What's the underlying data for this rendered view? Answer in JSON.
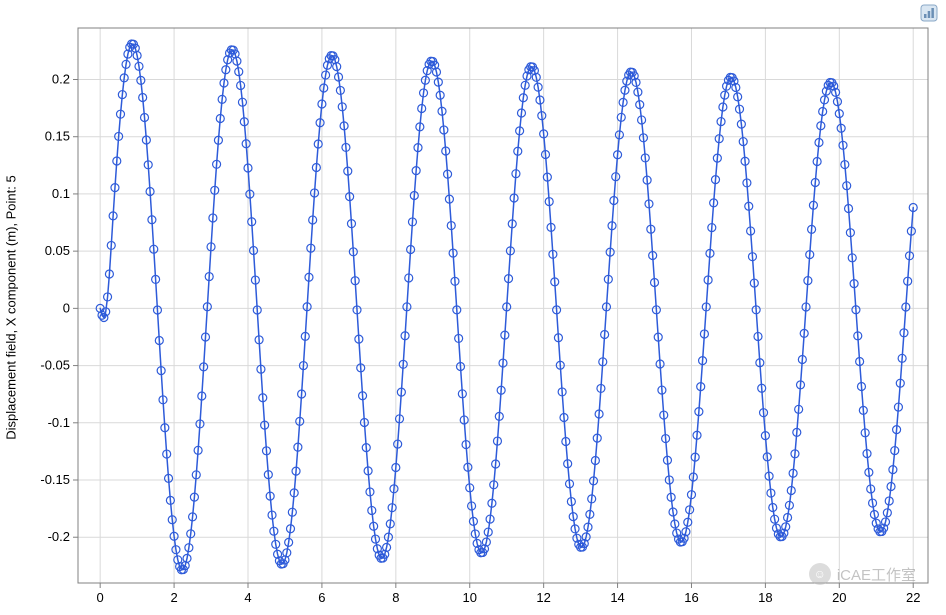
{
  "toolbar": {
    "icon_name": "plot-settings-icon",
    "icon_bg": "#d9e6f2",
    "icon_border": "#8aa8c7"
  },
  "watermark": {
    "text": "iCAE工作室",
    "icon_glyph": "☺"
  },
  "chart": {
    "type": "line+markers",
    "ylabel": "Displacement field, X component (m), Point: 5",
    "background_color": "#ffffff",
    "plot_border_color": "#808080",
    "grid_color": "#d9d9d9",
    "tick_font_size": 13,
    "tick_color": "#000000",
    "label_font_size": 13,
    "xlim": [
      -0.6,
      22.4
    ],
    "ylim": [
      -0.24,
      0.245
    ],
    "xticks": [
      0,
      2,
      4,
      6,
      8,
      10,
      12,
      14,
      16,
      18,
      20,
      22
    ],
    "yticks": [
      -0.2,
      -0.15,
      -0.1,
      -0.05,
      0,
      0.05,
      0.1,
      0.15,
      0.2
    ],
    "series": {
      "line_color": "#2e5bd9",
      "line_width": 1.5,
      "marker_color": "#2e5bd9",
      "marker_fill": "none",
      "marker_size": 4.0,
      "marker_stroke_width": 1.2,
      "initial_amplitude": 0.233,
      "period": 2.7,
      "decay_tau": 120,
      "dt": 0.05,
      "t_end": 22.0,
      "startup": {
        "points": [
          [
            0.0,
            0.0
          ],
          [
            0.05,
            -0.006
          ],
          [
            0.1,
            -0.008
          ],
          [
            0.15,
            -0.003
          ],
          [
            0.2,
            0.01
          ],
          [
            0.25,
            0.03
          ],
          [
            0.3,
            0.055
          ]
        ],
        "join_t": 0.3
      }
    }
  }
}
